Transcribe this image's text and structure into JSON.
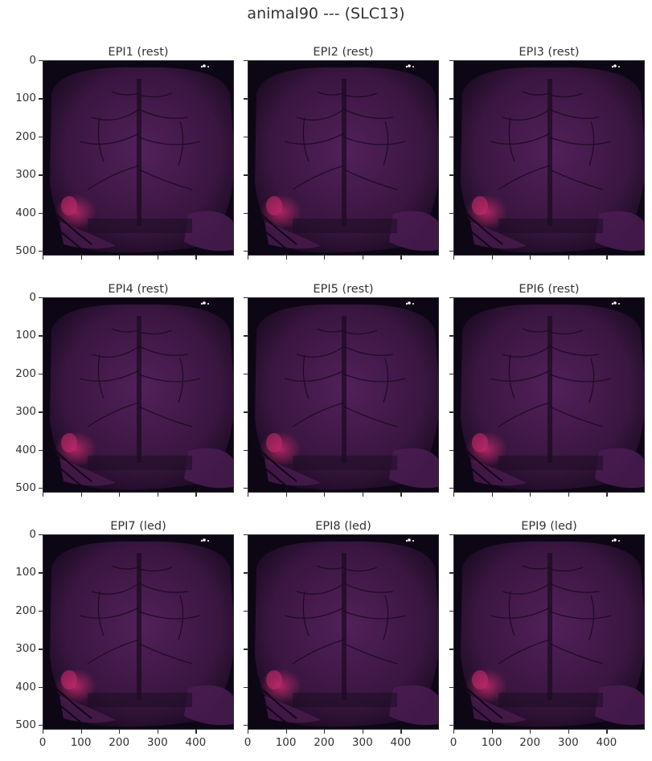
{
  "figure": {
    "title": "animal90 --- (SLC13)"
  },
  "panels": [
    {
      "title": "EPI1 (rest)"
    },
    {
      "title": "EPI2 (rest)"
    },
    {
      "title": "EPI3 (rest)"
    },
    {
      "title": "EPI4 (rest)"
    },
    {
      "title": "EPI5 (rest)"
    },
    {
      "title": "EPI6 (rest)"
    },
    {
      "title": "EPI7 (led)"
    },
    {
      "title": "EPI8 (led)"
    },
    {
      "title": "EPI9 (led)"
    }
  ],
  "axes": {
    "y_ticks": [
      "0",
      "100",
      "200",
      "300",
      "400",
      "500"
    ],
    "x_ticks": [
      "0",
      "100",
      "200",
      "300",
      "400"
    ],
    "y_range": [
      0,
      512
    ],
    "x_range": [
      0,
      500
    ]
  },
  "colors": {
    "background": "#0d0715",
    "tissue": "#3a1640",
    "tissue_light": "#52205a",
    "highlight": "#c2296a",
    "vessel": "#1a0a1f"
  }
}
